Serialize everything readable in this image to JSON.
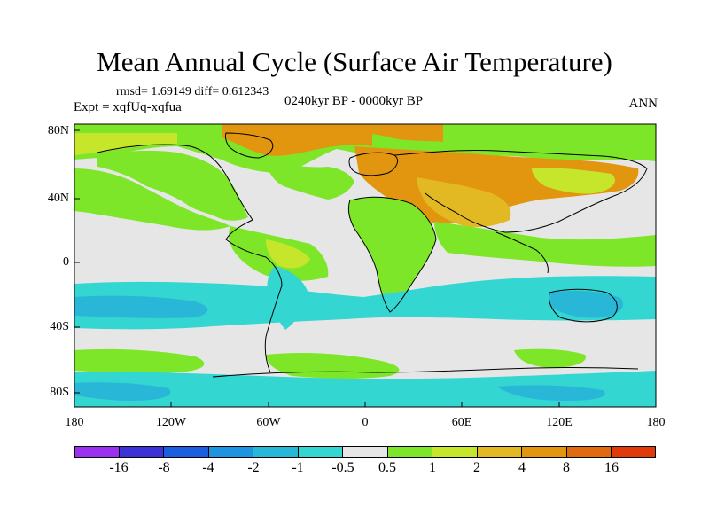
{
  "title": "Mean Annual Cycle (Surface Air Temperature)",
  "stats": "rmsd= 1.69149 diff= 0.612343",
  "experiment": "Expt = xqfUq-xqfua",
  "period": "0240kyr BP - 0000kyr BP",
  "season": "ANN",
  "y_axis": {
    "labels": [
      "80N",
      "40N",
      "0",
      "40S",
      "80S"
    ]
  },
  "x_axis": {
    "labels": [
      "180",
      "120W",
      "60W",
      "0",
      "60E",
      "120E",
      "180"
    ]
  },
  "colorbar": {
    "labels": [
      "-16",
      "-8",
      "-4",
      "-2",
      "-1",
      "-0.5",
      "0.5",
      "1",
      "2",
      "4",
      "8",
      "16"
    ],
    "colors": [
      "#9b30f0",
      "#3b32d8",
      "#1a5fe0",
      "#1e93e2",
      "#29b7d8",
      "#33d6d0",
      "#e6e6e6",
      "#7ee629",
      "#c6e62b",
      "#e2b823",
      "#e2960f",
      "#e06a10",
      "#e03a0a"
    ]
  },
  "palette": {
    "ocean_neutral": "#e6e6e6",
    "cool_mild": "#33d6d0",
    "cool": "#29b7d8",
    "cooler": "#1e93e2",
    "warm_mild": "#7ee629",
    "warm": "#c6e62b",
    "warmer": "#e2b823",
    "hot": "#e2960f",
    "very_hot": "#e06a10"
  }
}
